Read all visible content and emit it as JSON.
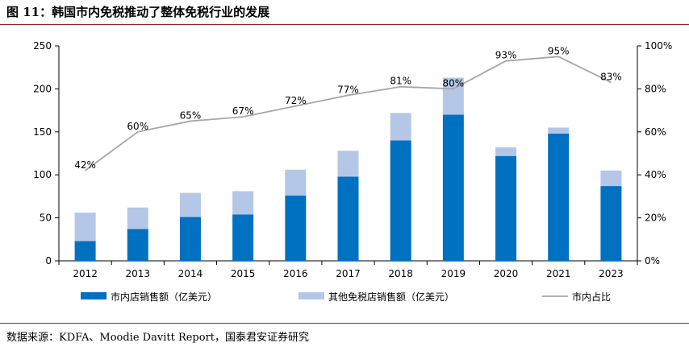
{
  "figure_title": "图 11：韩国市内免税推动了整体免税行业的发展",
  "source": "数据来源：KDFA、Moodie Davitt Report，国泰君安证券研究",
  "chart_data": {
    "type": "bar",
    "stacked": true,
    "categories": [
      "2012",
      "2013",
      "2014",
      "2015",
      "2016",
      "2017",
      "2018",
      "2019",
      "2020",
      "2021",
      "2023"
    ],
    "series": [
      {
        "name": "市内店销售额（亿美元）",
        "type": "bar",
        "axis": "left",
        "color": "#0070C0",
        "values": [
          23,
          37,
          51,
          54,
          76,
          98,
          140,
          170,
          122,
          148,
          87
        ]
      },
      {
        "name": "其他免税店销售额（亿美元）",
        "type": "bar",
        "axis": "left",
        "color": "#B4C7E7",
        "values": [
          33,
          25,
          28,
          27,
          30,
          30,
          32,
          43,
          10,
          7,
          18
        ]
      },
      {
        "name": "市内占比",
        "type": "line",
        "axis": "right",
        "color": "#A6A6A6",
        "values": [
          42,
          60,
          65,
          67,
          72,
          77,
          81,
          80,
          93,
          95,
          83
        ],
        "labels": [
          "42%",
          "60%",
          "65%",
          "67%",
          "72%",
          "77%",
          "81%",
          "80%",
          "93%",
          "95%",
          "83%"
        ]
      }
    ],
    "left_axis": {
      "ylim": [
        0,
        250
      ],
      "ticks": [
        "0",
        "50",
        "100",
        "150",
        "200",
        "250"
      ]
    },
    "right_axis": {
      "ylim": [
        0,
        100
      ],
      "ticks": [
        "0%",
        "20%",
        "40%",
        "60%",
        "80%",
        "100%"
      ]
    },
    "legend_position": "bottom"
  }
}
